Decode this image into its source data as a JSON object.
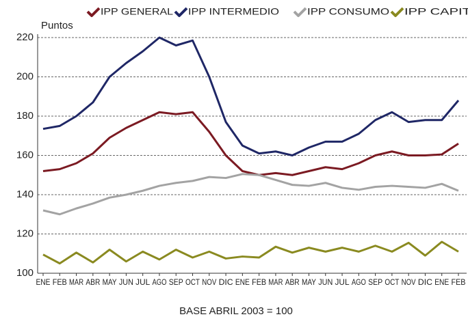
{
  "chart_data": {
    "type": "line",
    "y_label": "Puntos",
    "note": "BASE ABRIL 2003 = 100",
    "categories": [
      "ENE",
      "FEB",
      "MAR",
      "ABR",
      "MAY",
      "JUN",
      "JUL",
      "AGO",
      "SEP",
      "OCT",
      "NOV",
      "DIC",
      "ENE",
      "FEB",
      "MAR",
      "ABR",
      "MAY",
      "JUN",
      "JUL",
      "AGO",
      "SEP",
      "OCT",
      "NOV",
      "DIC",
      "ENE",
      "FEB"
    ],
    "series": [
      {
        "name": "IPP GENERAL",
        "color": "#7b1a22",
        "values": [
          152,
          153,
          156,
          161,
          169,
          174,
          178,
          182,
          181,
          182,
          172,
          160,
          152,
          150,
          151,
          150,
          152,
          154,
          153,
          156,
          160,
          162,
          160,
          160,
          160.5,
          166
        ]
      },
      {
        "name": "IPP INTERMEDIO",
        "color": "#1f2766",
        "values": [
          173.5,
          175,
          180,
          187,
          200,
          207,
          213,
          220,
          216,
          218.5,
          200,
          177,
          165,
          161,
          162,
          160,
          164,
          167,
          167,
          171,
          178,
          182,
          177,
          178,
          178,
          188
        ]
      },
      {
        "name": "IPP CONSUMO",
        "color": "#a3a3a3",
        "values": [
          132,
          130,
          133,
          135.5,
          138.5,
          140,
          142,
          144.5,
          146,
          147,
          149,
          148.5,
          150.5,
          150,
          147.5,
          145,
          144.5,
          146,
          143.5,
          142.5,
          144,
          144.5,
          144,
          143.5,
          145.5,
          142
        ]
      },
      {
        "name": "IPP CAPITAL",
        "color": "#8a8a20",
        "values": [
          109.5,
          105,
          110.5,
          105.5,
          112,
          106,
          111,
          107,
          112,
          108,
          111,
          107.5,
          108.5,
          108,
          113.5,
          110.5,
          113,
          111,
          113,
          111,
          114,
          111,
          115.5,
          109,
          116,
          111
        ]
      }
    ],
    "ylim": [
      100,
      220
    ],
    "yticks": [
      100,
      120,
      140,
      160,
      180,
      200,
      220
    ],
    "grid": true,
    "legend": "top"
  }
}
